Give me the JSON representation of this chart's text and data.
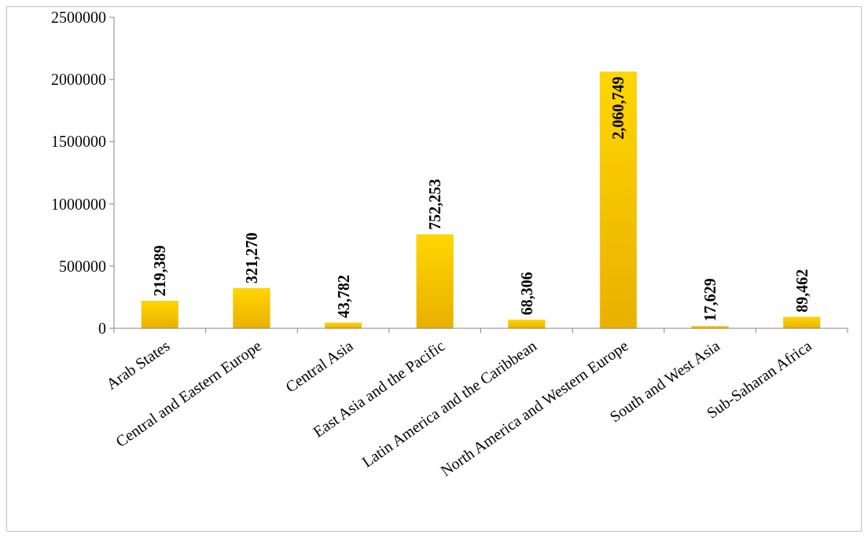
{
  "chart_data": {
    "type": "bar",
    "categories": [
      "Arab States",
      "Central and Eastern Europe",
      "Central Asia",
      "East Asia and the Pacific",
      "Latin America and the Caribbean",
      "North America and Western Europe",
      "South and West Asia",
      "Sub-Saharan Africa"
    ],
    "values": [
      219389,
      321270,
      43782,
      752253,
      68306,
      2060749,
      17629,
      89462
    ],
    "value_labels": [
      "219,389",
      "321,270",
      "43,782",
      "752,253",
      "68,306",
      "2,060,749",
      "17,629",
      "89,462"
    ],
    "color": "#ffc000",
    "ylim": [
      0,
      2500000
    ],
    "yticks": [
      0,
      500000,
      1000000,
      1500000,
      2000000,
      2500000
    ]
  }
}
